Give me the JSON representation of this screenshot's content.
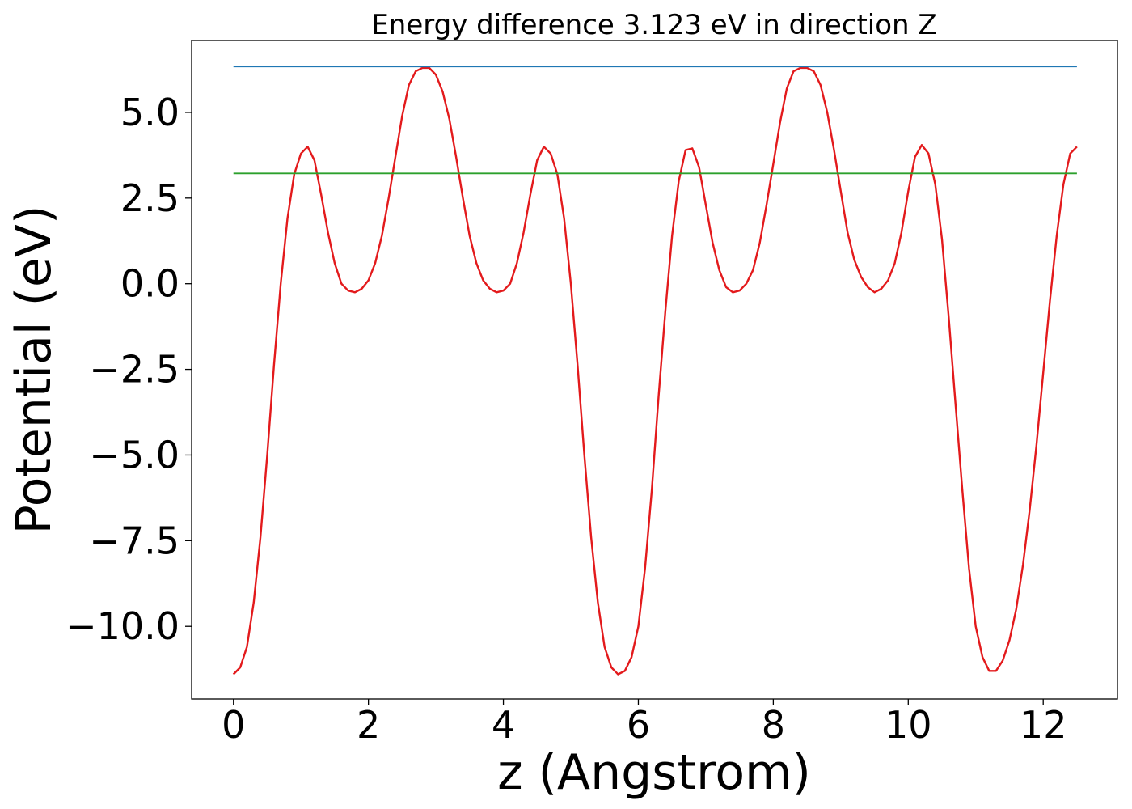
{
  "chart_data": {
    "type": "line",
    "title": "Energy difference 3.123 eV in direction Z",
    "xlabel": "z (Angstrom)",
    "ylabel": "Potential (eV)",
    "xlim": [
      -0.62,
      13.1
    ],
    "ylim": [
      -12.12,
      7.1
    ],
    "xticks": [
      0,
      2,
      4,
      6,
      8,
      10,
      12
    ],
    "xtick_labels": [
      "0",
      "2",
      "4",
      "6",
      "8",
      "10",
      "12"
    ],
    "yticks": [
      5.0,
      2.5,
      0.0,
      -2.5,
      -5.0,
      -7.5,
      -10.0
    ],
    "ytick_labels": [
      "5.0",
      "2.5",
      "0.0",
      "−2.5",
      "−5.0",
      "−7.5",
      "−10.0"
    ],
    "grid": false,
    "series": [
      {
        "color": "#e31a1c",
        "x": [
          0.0,
          0.1,
          0.2,
          0.3,
          0.4,
          0.5,
          0.6,
          0.7,
          0.8,
          0.9,
          1.0,
          1.1,
          1.2,
          1.3,
          1.4,
          1.5,
          1.6,
          1.7,
          1.8,
          1.9,
          2.0,
          2.1,
          2.2,
          2.3,
          2.4,
          2.5,
          2.6,
          2.7,
          2.8,
          2.9,
          3.0,
          3.1,
          3.2,
          3.3,
          3.4,
          3.5,
          3.6,
          3.7,
          3.8,
          3.9,
          4.0,
          4.1,
          4.2,
          4.3,
          4.4,
          4.5,
          4.6,
          4.7,
          4.8,
          4.9,
          5.0,
          5.1,
          5.2,
          5.3,
          5.4,
          5.5,
          5.6,
          5.7,
          5.8,
          5.9,
          6.0,
          6.1,
          6.2,
          6.3,
          6.4,
          6.5,
          6.6,
          6.7,
          6.8,
          6.9,
          7.0,
          7.1,
          7.2,
          7.3,
          7.4,
          7.5,
          7.6,
          7.7,
          7.8,
          7.9,
          8.0,
          8.1,
          8.2,
          8.3,
          8.4,
          8.5,
          8.6,
          8.7,
          8.8,
          8.9,
          9.0,
          9.1,
          9.2,
          9.3,
          9.4,
          9.5,
          9.6,
          9.7,
          9.8,
          9.9,
          10.0,
          10.1,
          10.2,
          10.3,
          10.4,
          10.5,
          10.6,
          10.7,
          10.8,
          10.9,
          11.0,
          11.1,
          11.2,
          11.3,
          11.4,
          11.5,
          11.6,
          11.7,
          11.8,
          11.9,
          12.0,
          12.1,
          12.2,
          12.3,
          12.4,
          12.5
        ],
        "y": [
          -11.4,
          -11.2,
          -10.6,
          -9.3,
          -7.4,
          -5.0,
          -2.4,
          0.0,
          1.9,
          3.2,
          3.8,
          4.0,
          3.6,
          2.6,
          1.5,
          0.6,
          0.0,
          -0.2,
          -0.25,
          -0.15,
          0.1,
          0.6,
          1.4,
          2.5,
          3.7,
          4.9,
          5.8,
          6.2,
          6.3,
          6.3,
          6.1,
          5.6,
          4.8,
          3.7,
          2.5,
          1.4,
          0.6,
          0.1,
          -0.15,
          -0.25,
          -0.2,
          0.0,
          0.6,
          1.5,
          2.6,
          3.6,
          4.0,
          3.8,
          3.2,
          1.9,
          0.0,
          -2.4,
          -5.0,
          -7.4,
          -9.3,
          -10.6,
          -11.2,
          -11.4,
          -11.3,
          -10.9,
          -10.0,
          -8.3,
          -6.0,
          -3.3,
          -0.8,
          1.4,
          3.0,
          3.9,
          3.95,
          3.4,
          2.3,
          1.2,
          0.4,
          -0.1,
          -0.25,
          -0.2,
          0.0,
          0.4,
          1.2,
          2.3,
          3.5,
          4.7,
          5.7,
          6.2,
          6.3,
          6.3,
          6.2,
          5.8,
          5.0,
          3.9,
          2.7,
          1.5,
          0.7,
          0.2,
          -0.1,
          -0.25,
          -0.15,
          0.1,
          0.6,
          1.5,
          2.7,
          3.7,
          4.05,
          3.8,
          2.9,
          1.3,
          -1.0,
          -3.5,
          -6.0,
          -8.3,
          -10.0,
          -10.9,
          -11.3,
          -11.3,
          -11.0,
          -10.4,
          -9.5,
          -8.2,
          -6.6,
          -4.7,
          -2.6,
          -0.5,
          1.4,
          2.9,
          3.8,
          4.0
        ],
        "width": 2.4
      },
      {
        "color": "#1f77b4",
        "x": [
          0.0,
          12.5
        ],
        "y": [
          6.34,
          6.34
        ],
        "width": 1.8
      },
      {
        "color": "#2ca02c",
        "x": [
          0.0,
          12.5
        ],
        "y": [
          3.22,
          3.22
        ],
        "width": 1.8
      }
    ]
  }
}
